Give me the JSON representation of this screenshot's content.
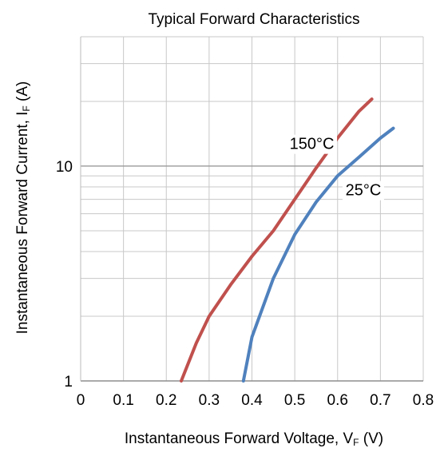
{
  "chart_data": {
    "type": "line",
    "title": "Typical Forward Characteristics",
    "xlabel": {
      "main": "Instantaneous Forward Voltage, V",
      "sub": "F",
      "unit": " (V)"
    },
    "ylabel": {
      "main": "Instantaneous Forward Current, I",
      "sub": "F",
      "unit": " (A)"
    },
    "xlim": [
      0,
      0.8
    ],
    "ylim": [
      1,
      40
    ],
    "yscale": "log",
    "grid": true,
    "x_ticks": [
      "0",
      "0.1",
      "0.2",
      "0.3",
      "0.4",
      "0.5",
      "0.6",
      "0.7",
      "0.8"
    ],
    "x_tick_values": [
      0,
      0.1,
      0.2,
      0.3,
      0.4,
      0.5,
      0.6,
      0.7,
      0.8
    ],
    "y_ticks": [
      "1",
      "10"
    ],
    "y_tick_values": [
      1,
      10
    ],
    "series": [
      {
        "name": "150°C",
        "color": "#c0504d",
        "x": [
          0.235,
          0.27,
          0.3,
          0.35,
          0.4,
          0.45,
          0.5,
          0.55,
          0.6,
          0.65,
          0.68
        ],
        "y": [
          1.0,
          1.5,
          2.0,
          2.8,
          3.8,
          5.0,
          7.0,
          9.8,
          13.5,
          18.0,
          20.5
        ]
      },
      {
        "name": "25°C",
        "color": "#4f81bd",
        "x": [
          0.38,
          0.4,
          0.45,
          0.5,
          0.55,
          0.6,
          0.65,
          0.7,
          0.73
        ],
        "y": [
          1.0,
          1.6,
          3.0,
          4.8,
          6.8,
          9.0,
          11.0,
          13.5,
          15.0
        ]
      }
    ],
    "annotations": [
      {
        "text": "150°C",
        "x": 0.54,
        "y": 12.0
      },
      {
        "text": "25°C",
        "x": 0.66,
        "y": 7.3
      }
    ]
  }
}
